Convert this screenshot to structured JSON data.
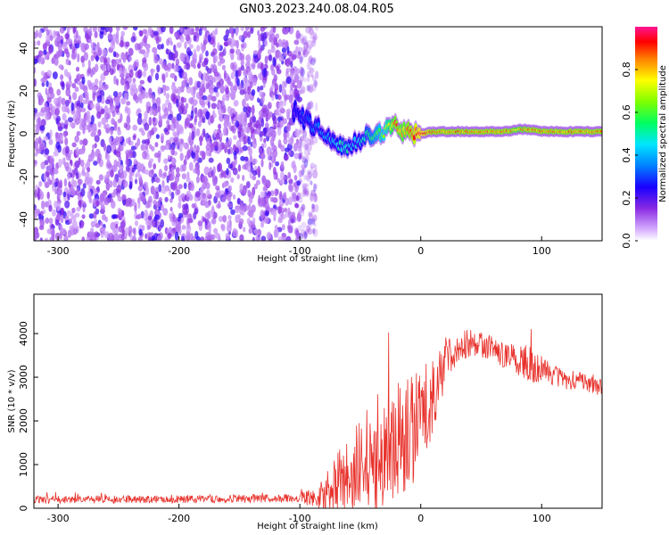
{
  "figure_title": "GN03.2023.240.08.04.R05",
  "chart_data": [
    {
      "type": "heatmap",
      "xlabel": "Height of straight line (km)",
      "ylabel": "Frequency (Hz)",
      "xlim": [
        -320,
        150
      ],
      "ylim": [
        -50,
        50
      ],
      "xticks": [
        -300,
        -200,
        -100,
        0,
        100
      ],
      "yticks": [
        -40,
        -20,
        0,
        20,
        40
      ],
      "colorbar": {
        "label": "Normalized spectral amplitude",
        "ticks": [
          0.0,
          0.2,
          0.4,
          0.6,
          0.8
        ],
        "range": [
          0,
          1
        ]
      },
      "noise_region_x": [
        -320,
        -92
      ],
      "signal_trace": {
        "x": [
          -105,
          -98,
          -90,
          -82,
          -75,
          -68,
          -62,
          -56,
          -50,
          -45,
          -40,
          -35,
          -30,
          -25,
          -20,
          -15,
          -10,
          -5,
          0,
          10,
          20,
          30,
          40,
          50,
          60,
          70,
          80,
          90,
          100,
          110,
          120,
          130,
          150
        ],
        "freq": [
          11,
          8,
          4,
          1,
          -2,
          -5,
          -8,
          -4,
          -3,
          -1,
          -2,
          0,
          1,
          2,
          3,
          1,
          0,
          0,
          0,
          1,
          1,
          1,
          1,
          1,
          1,
          1,
          2,
          2,
          1,
          1,
          1,
          1,
          1
        ],
        "amplitude": [
          0.25,
          0.3,
          0.35,
          0.4,
          0.45,
          0.5,
          0.55,
          0.45,
          0.5,
          0.55,
          0.6,
          0.65,
          0.7,
          0.8,
          0.9,
          0.85,
          0.9,
          0.95,
          1.0,
          0.9,
          0.9,
          0.9,
          0.9,
          0.9,
          0.9,
          0.9,
          0.85,
          0.9,
          0.9,
          0.9,
          0.9,
          0.9,
          0.9
        ]
      }
    },
    {
      "type": "line",
      "xlabel": "Height of straight line (km)",
      "ylabel": "SNR (10 * v/v)",
      "xlim": [
        -320,
        150
      ],
      "ylim": [
        0,
        4900
      ],
      "xticks": [
        -300,
        -200,
        -100,
        0,
        100
      ],
      "yticks": [
        0,
        1000,
        2000,
        3000,
        4000
      ],
      "color": "#e8322c",
      "envelope": {
        "x": [
          -320,
          -250,
          -200,
          -150,
          -110,
          -100,
          -90,
          -80,
          -70,
          -60,
          -50,
          -40,
          -30,
          -20,
          -10,
          0,
          10,
          20,
          30,
          40,
          50,
          60,
          70,
          80,
          90,
          100,
          110,
          120,
          130,
          140,
          150
        ],
        "mean": [
          200,
          200,
          210,
          220,
          230,
          240,
          250,
          300,
          450,
          650,
          900,
          1100,
          1300,
          1500,
          1700,
          2000,
          2600,
          3300,
          3700,
          3800,
          3750,
          3650,
          3500,
          3400,
          3300,
          3200,
          3050,
          2950,
          2900,
          2850,
          2750
        ],
        "spread": [
          90,
          90,
          90,
          95,
          100,
          150,
          200,
          400,
          800,
          1000,
          1200,
          1400,
          1500,
          1500,
          1400,
          1200,
          900,
          600,
          400,
          350,
          300,
          300,
          300,
          350,
          450,
          300,
          250,
          250,
          220,
          200,
          200
        ]
      }
    }
  ]
}
